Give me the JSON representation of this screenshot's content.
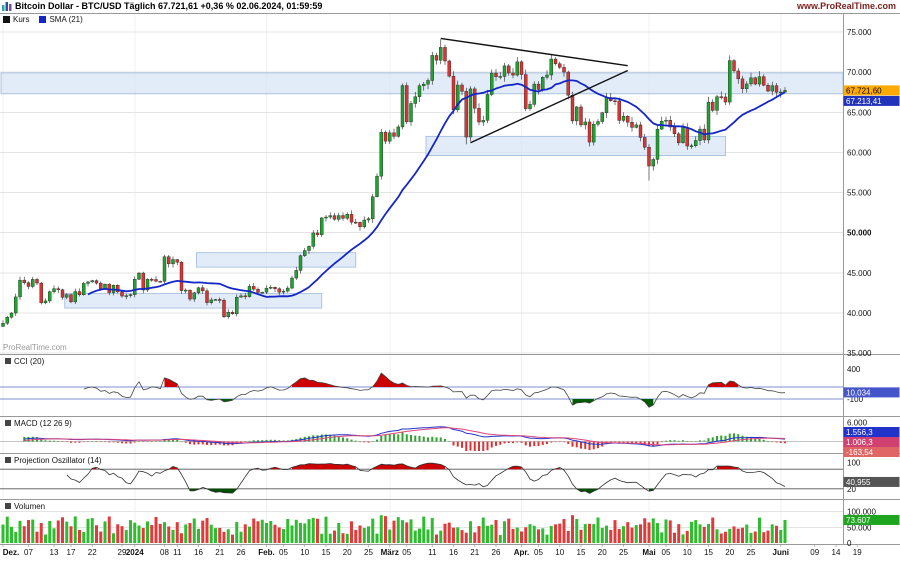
{
  "header": {
    "title": "Bitcoin Dollar - BTC/USD Täglich 67.721,61 +0,36 % 02.06.2024, 01:59:59",
    "website": "www.ProRealTime.com"
  },
  "legend": {
    "price_label": "Kurs",
    "sma_label": "SMA (21)"
  },
  "watermark": "ProRealTime.com",
  "colors": {
    "up": "#1fa32f",
    "down": "#d93434",
    "sma": "#1526c8",
    "zone_fill": "#d8e5f5",
    "zone_stroke": "#9db8dd",
    "grid": "#e4e4e4",
    "month_grid": "#f0f0f0",
    "axis": "#999999",
    "trendline": "#111111",
    "cci_line": "#444444",
    "cci_over": "#cc0000",
    "cci_under": "#005c00",
    "cci_ref": "#7f8fd0",
    "macd_line": "#2233cc",
    "macd_signal": "#e0457b",
    "hist_up": "#2fa32f",
    "hist_down": "#e03131",
    "proj_line": "#333333",
    "proj_over": "#cc0000",
    "proj_under": "#004d00",
    "proj_ref": "#555555",
    "vol_up": "#2ebd2e",
    "vol_down": "#e23a3a",
    "last_price_bg": "#ffaa00",
    "sma_tag_bg": "#2233bb",
    "cci_tag_bg": "#4455cc",
    "proj_tag_bg": "#555555",
    "vol_tag_bg": "#1fa51f",
    "site_color": "#7a1f1f"
  },
  "price_axis": {
    "ticks": [
      {
        "text": "75.000",
        "value": 75000
      },
      {
        "text": "70.000",
        "value": 70000
      },
      {
        "text": "65.000",
        "value": 65000
      },
      {
        "text": "60.000",
        "value": 60000
      },
      {
        "text": "55.000",
        "value": 55000
      },
      {
        "text": "50.000",
        "value": 50000,
        "bold": true
      },
      {
        "text": "45.000",
        "value": 45000
      },
      {
        "text": "40.000",
        "value": 40000
      },
      {
        "text": "35.000",
        "value": 35000
      }
    ],
    "last_price_tag": {
      "text": "67.721,60",
      "value": 67721.6
    },
    "sma_tag": {
      "text": "67.213,41",
      "value": 67213.41
    }
  },
  "panels": {
    "cci": {
      "title": "CCI (20)",
      "ticks": [
        {
          "text": "400",
          "value": 400
        },
        {
          "text": "-100",
          "value": -100
        }
      ],
      "tag": {
        "text": "10,034",
        "value": 10.034
      },
      "ref_lines": [
        100,
        -100
      ],
      "range": [
        450,
        -350
      ]
    },
    "macd": {
      "title": "MACD (12 26 9)",
      "ticks": [
        {
          "text": "6.000",
          "value": 6000
        }
      ],
      "tags": [
        {
          "text": "1.556,3",
          "bg": "#2233cc"
        },
        {
          "text": "1.006,3",
          "bg": "#d04070"
        },
        {
          "text": "-163,54",
          "bg": "#e06666"
        }
      ],
      "range": [
        6500,
        -3500
      ]
    },
    "projection": {
      "title": "Projection Oszillator (14)",
      "ticks": [
        {
          "text": "100",
          "value": 100
        },
        {
          "text": "20",
          "value": 20
        }
      ],
      "tag": {
        "text": "40,955",
        "value": 41
      },
      "ref_lines": [
        80,
        20
      ],
      "range": [
        105,
        -5
      ]
    },
    "volume": {
      "title": "Volumen",
      "ticks": [
        {
          "text": "100.000",
          "value": 100000
        },
        {
          "text": "50.000",
          "value": 50000
        },
        {
          "text": "0",
          "value": 0
        }
      ],
      "tag": {
        "text": "73.607",
        "value": 73607
      },
      "range": [
        0,
        115000
      ]
    }
  },
  "time_axis": {
    "labels": [
      {
        "t": "Dez.",
        "d": 0,
        "b": true
      },
      {
        "t": "07",
        "d": 6
      },
      {
        "t": "13",
        "d": 12
      },
      {
        "t": "17",
        "d": 16
      },
      {
        "t": "22",
        "d": 21
      },
      {
        "t": "29",
        "d": 28
      },
      {
        "t": "2024",
        "d": 31,
        "b": true
      },
      {
        "t": "08",
        "d": 38
      },
      {
        "t": "11",
        "d": 41
      },
      {
        "t": "16",
        "d": 46
      },
      {
        "t": "21",
        "d": 51
      },
      {
        "t": "26",
        "d": 56
      },
      {
        "t": "Feb.",
        "d": 62,
        "b": true
      },
      {
        "t": "05",
        "d": 66
      },
      {
        "t": "10",
        "d": 71
      },
      {
        "t": "15",
        "d": 76
      },
      {
        "t": "20",
        "d": 81
      },
      {
        "t": "25",
        "d": 86
      },
      {
        "t": "März",
        "d": 91,
        "b": true
      },
      {
        "t": "05",
        "d": 95
      },
      {
        "t": "11",
        "d": 101
      },
      {
        "t": "16",
        "d": 106
      },
      {
        "t": "21",
        "d": 111
      },
      {
        "t": "26",
        "d": 116
      },
      {
        "t": "Apr.",
        "d": 122,
        "b": true
      },
      {
        "t": "05",
        "d": 126
      },
      {
        "t": "10",
        "d": 131
      },
      {
        "t": "15",
        "d": 136
      },
      {
        "t": "20",
        "d": 141
      },
      {
        "t": "25",
        "d": 146
      },
      {
        "t": "Mai",
        "d": 152,
        "b": true
      },
      {
        "t": "05",
        "d": 156
      },
      {
        "t": "10",
        "d": 161
      },
      {
        "t": "15",
        "d": 166
      },
      {
        "t": "20",
        "d": 171
      },
      {
        "t": "25",
        "d": 176
      },
      {
        "t": "Juni",
        "d": 183,
        "b": true
      },
      {
        "t": "09",
        "d": 191
      },
      {
        "t": "14",
        "d": 196
      },
      {
        "t": "19",
        "d": 201
      }
    ]
  },
  "chart_data": {
    "type": "candlestick",
    "instrument": "Bitcoin Dollar",
    "symbol": "BTC/USD",
    "timeframe": "Täglich",
    "last_price": 67721.61,
    "change_pct": "+0,36 %",
    "timestamp": "02.06.2024, 01:59:59",
    "start_date": "2023-12-01",
    "end_date": "2024-06-02",
    "ylim": [
      35000,
      75000
    ],
    "sma_period": 21,
    "closes": [
      38700,
      39450,
      39980,
      41990,
      44080,
      43760,
      43290,
      44170,
      43720,
      41250,
      41490,
      42640,
      43020,
      42880,
      41940,
      42280,
      41370,
      42660,
      42270,
      43670,
      43860,
      44020,
      43710,
      43010,
      43580,
      42520,
      43450,
      42610,
      42100,
      42150,
      42280,
      44190,
      44960,
      42850,
      44180,
      44160,
      43940,
      43930,
      46990,
      46110,
      46650,
      46310,
      42780,
      42840,
      41720,
      42510,
      43130,
      42740,
      41280,
      41620,
      41670,
      41580,
      39510,
      40080,
      39880,
      41960,
      42120,
      42030,
      43300,
      42940,
      42550,
      42580,
      43080,
      43190,
      43010,
      42580,
      42710,
      43090,
      44340,
      45290,
      47130,
      47770,
      48290,
      49960,
      49740,
      51830,
      51940,
      52120,
      51660,
      52130,
      51780,
      52280,
      51310,
      51280,
      50740,
      51570,
      51730,
      54480,
      57040,
      62500,
      61400,
      62440,
      61990,
      63170,
      68330,
      63800,
      66090,
      66930,
      68300,
      68500,
      68960,
      72080,
      71480,
      73080,
      71390,
      69500,
      65300,
      68390,
      67610,
      61910,
      67910,
      65490,
      63780,
      63990,
      67210,
      69880,
      69420,
      69460,
      70780,
      69890,
      69630,
      71280,
      69700,
      65450,
      65980,
      68510,
      67840,
      69360,
      69640,
      71630,
      71050,
      70590,
      70010,
      67120,
      63920,
      65660,
      63420,
      63790,
      61280,
      63510,
      63840,
      64940,
      66840,
      66440,
      66410,
      63980,
      64510,
      63760,
      63110,
      63420,
      61860,
      60640,
      58300,
      59120,
      62900,
      63890,
      64000,
      63160,
      62310,
      61190,
      63090,
      60790,
      60820,
      61480,
      62900,
      61550,
      66260,
      65230,
      66940,
      66910,
      66270,
      71440,
      70150,
      69160,
      67930,
      68530,
      69290,
      68510,
      69440,
      68360,
      67640,
      68320,
      67490,
      67530,
      67721
    ],
    "wick_overrides": {
      "103": {
        "high": 74100
      },
      "109": {
        "low": 61000
      },
      "152": {
        "low": 56500
      }
    },
    "zones": [
      {
        "day_start": 0,
        "day_end": 203,
        "low": 67300,
        "high": 69900
      },
      {
        "day_start": 100,
        "day_end": 170,
        "low": 59600,
        "high": 62000
      },
      {
        "day_start": 46,
        "day_end": 83,
        "low": 45700,
        "high": 47500
      },
      {
        "day_start": 15,
        "day_end": 75,
        "low": 40600,
        "high": 42400
      }
    ],
    "trendlines": [
      {
        "d1": 103,
        "p1": 74200,
        "d2": 147,
        "p2": 70800
      },
      {
        "d1": 110,
        "p1": 61200,
        "d2": 147,
        "p2": 70200
      }
    ],
    "indicators": [
      {
        "name": "SMA",
        "period": 21
      },
      {
        "name": "CCI",
        "period": 20
      },
      {
        "name": "MACD",
        "params": [
          12,
          26,
          9
        ]
      },
      {
        "name": "Projection Oszillator",
        "period": 14
      },
      {
        "name": "Volumen"
      }
    ],
    "month_starts": [
      0,
      31,
      62,
      91,
      122,
      152,
      183
    ]
  }
}
